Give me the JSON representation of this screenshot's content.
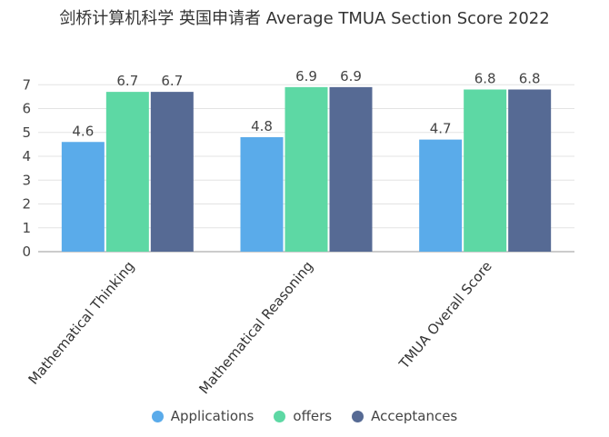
{
  "chart_data": {
    "type": "bar",
    "title": "剑桥计算机科学 英国申请者 Average TMUA Section Score 2022",
    "categories": [
      "Mathematical Thinking",
      "Mathematical Reasoning",
      "TMUA Overall Score"
    ],
    "series": [
      {
        "name": "Applications",
        "values": [
          4.6,
          4.8,
          4.7
        ],
        "color": "#5aabea"
      },
      {
        "name": "offers",
        "values": [
          6.7,
          6.9,
          6.8
        ],
        "color": "#5dd8a4"
      },
      {
        "name": "Acceptances",
        "values": [
          6.7,
          6.9,
          6.8
        ],
        "color": "#566a94"
      }
    ],
    "yticks": [
      "0",
      "1",
      "2",
      "3",
      "4",
      "5",
      "6",
      "7"
    ],
    "ylim": [
      0,
      7.2
    ],
    "grid": true,
    "legend_position": "bottom"
  }
}
